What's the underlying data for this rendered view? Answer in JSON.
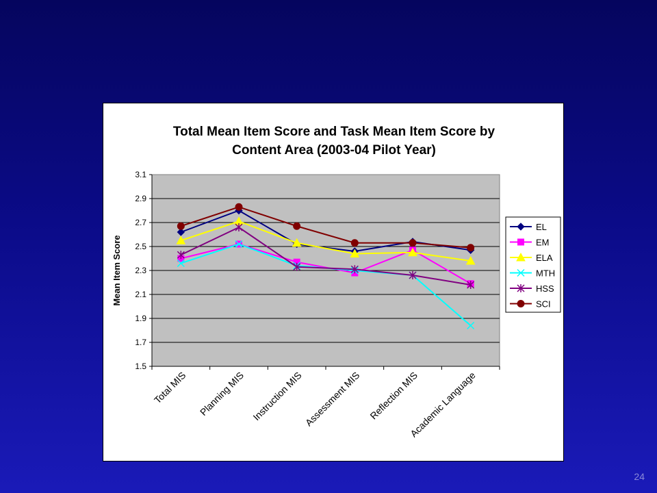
{
  "slide": {
    "number": "24"
  },
  "chart_data": {
    "type": "line",
    "title_lines": [
      "Total Mean Item Score and Task Mean Item Score by",
      "Content Area (2003-04 Pilot Year)"
    ],
    "xlabel": "",
    "ylabel": "Mean Item Score",
    "categories": [
      "Total MIS",
      "Planning MIS",
      "Instruction MIS",
      "Assessment MIS",
      "Reflection MIS",
      "Academic Language"
    ],
    "ylim": [
      1.5,
      3.1
    ],
    "yticks": [
      "3.1",
      "2.9",
      "2.7",
      "2.5",
      "2.3",
      "2.1",
      "1.9",
      "1.7",
      "1.5"
    ],
    "grid": true,
    "plot_background": "#c0c0c0",
    "legend_position": "right",
    "series": [
      {
        "name": "EL",
        "color": "#000080",
        "marker": "diamond",
        "values": [
          2.62,
          2.8,
          2.52,
          2.46,
          2.54,
          2.47
        ]
      },
      {
        "name": "EM",
        "color": "#ff00ff",
        "marker": "square",
        "values": [
          2.4,
          2.52,
          2.37,
          2.28,
          2.47,
          2.19
        ]
      },
      {
        "name": "ELA",
        "color": "#ffff00",
        "marker": "triangle",
        "values": [
          2.55,
          2.71,
          2.53,
          2.44,
          2.45,
          2.38
        ]
      },
      {
        "name": "MTH",
        "color": "#00ffff",
        "marker": "x",
        "values": [
          2.36,
          2.52,
          2.34,
          2.3,
          2.26,
          1.84
        ]
      },
      {
        "name": "HSS",
        "color": "#800080",
        "marker": "star",
        "values": [
          2.43,
          2.66,
          2.33,
          2.31,
          2.26,
          2.18
        ]
      },
      {
        "name": "SCI",
        "color": "#800000",
        "marker": "circle",
        "values": [
          2.67,
          2.83,
          2.67,
          2.53,
          2.53,
          2.49
        ]
      }
    ]
  }
}
